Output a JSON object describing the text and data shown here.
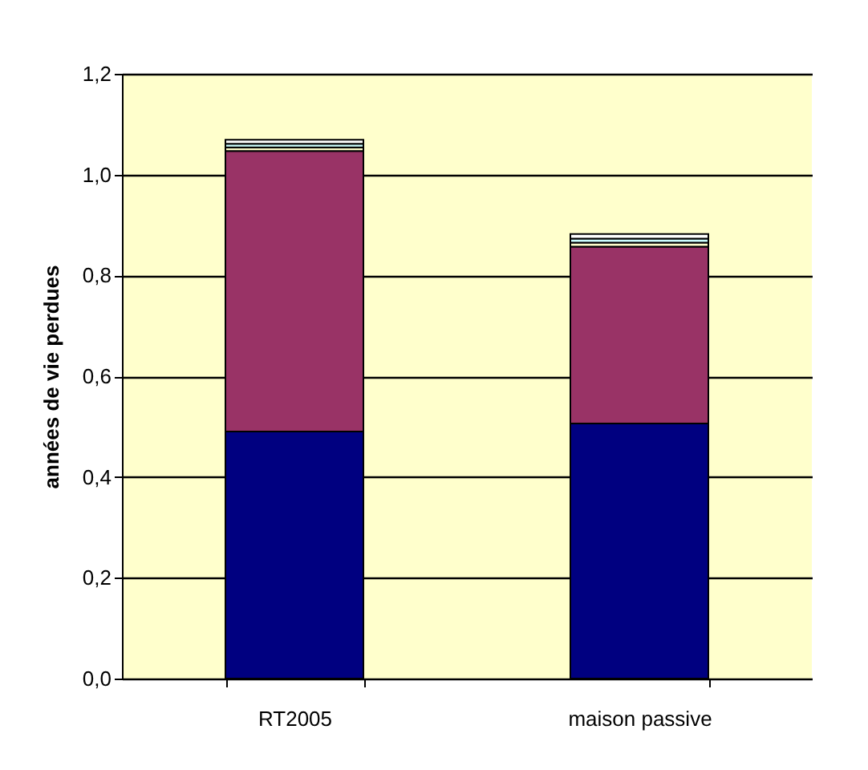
{
  "chart_data": {
    "type": "bar",
    "ylabel": "années de vie perdues",
    "categories": [
      "RT2005",
      "maison passive"
    ],
    "stacked": true,
    "series": [
      {
        "color": "#000080",
        "values": [
          0.49,
          0.506
        ]
      },
      {
        "color": "#993366",
        "values": [
          0.557,
          0.351
        ]
      },
      {
        "color": "#ffffcc",
        "values": [
          0.007,
          0.008
        ]
      },
      {
        "color": "#ccffff",
        "values": [
          0.007,
          0.008
        ]
      },
      {
        "color": "#ffffff",
        "values": [
          0.008,
          0.009
        ]
      }
    ],
    "ylim": [
      0,
      1.2
    ],
    "yticks": [
      {
        "value": 0,
        "label": "0,0"
      },
      {
        "value": 0.2,
        "label": "0,2"
      },
      {
        "value": 0.4,
        "label": "0,4"
      },
      {
        "value": 0.6,
        "label": "0,6"
      },
      {
        "value": 0.8,
        "label": "0,8"
      },
      {
        "value": 1.0,
        "label": "1,0"
      },
      {
        "value": 1.2,
        "label": "1,2"
      }
    ],
    "grid": "y",
    "legend": false
  }
}
